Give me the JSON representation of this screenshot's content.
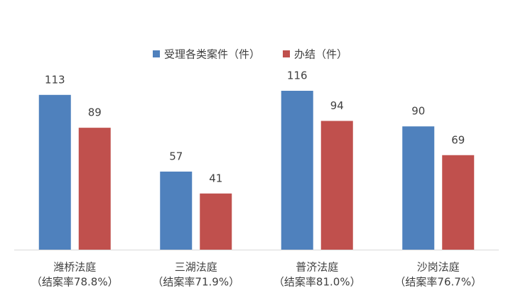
{
  "chart_data": {
    "type": "bar",
    "categories": [
      [
        "潍桥法庭",
        "（结案率78.8%）"
      ],
      [
        "三湖法庭",
        "（结案率71.9%）"
      ],
      [
        "普济法庭",
        "（结案率81.0%）"
      ],
      [
        "沙岗法庭",
        "（结案率76.7%）"
      ]
    ],
    "series": [
      {
        "name": "受理各类案件（件）",
        "color": "#4f81bd",
        "values": [
          113,
          57,
          116,
          90
        ]
      },
      {
        "name": "办结（件）",
        "color": "#c0504d",
        "values": [
          89,
          41,
          94,
          69
        ]
      }
    ],
    "legend": "top"
  }
}
